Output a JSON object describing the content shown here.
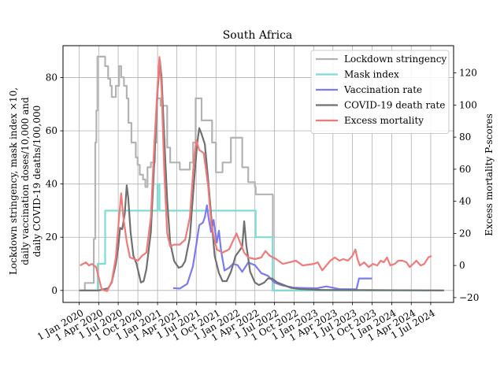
{
  "chart_data": {
    "type": "line",
    "title": "South Africa",
    "ylabel_left": [
      "Lockdown stringency, mask index ×10,",
      "daily vaccination doses/10,000 and",
      "daily COVID-19 deaths/100,000"
    ],
    "ylabel_right": "Excess mortality P-scores",
    "ylim_left": [
      -4.5,
      92
    ],
    "ylim_right": [
      -23,
      137
    ],
    "xlim": [
      "2019-10-17",
      "2024-10-16"
    ],
    "grid": true,
    "legend_position": "upper right",
    "yticks_left": [
      0,
      20,
      40,
      60,
      80
    ],
    "yticks_right": [
      -20,
      0,
      20,
      40,
      60,
      80,
      100,
      120
    ],
    "xticks": [
      {
        "date": "2020-01-01",
        "label": "1 Jan 2020"
      },
      {
        "date": "2020-04-01",
        "label": "1 Apr 2020"
      },
      {
        "date": "2020-07-01",
        "label": "1 Jul 2020"
      },
      {
        "date": "2020-10-01",
        "label": "1 Oct 2020"
      },
      {
        "date": "2021-01-01",
        "label": "1 Jan 2021"
      },
      {
        "date": "2021-04-01",
        "label": "1 Apr 2021"
      },
      {
        "date": "2021-07-01",
        "label": "1 Jul 2021"
      },
      {
        "date": "2021-10-01",
        "label": "1 Oct 2021"
      },
      {
        "date": "2022-01-01",
        "label": "1 Jan 2022"
      },
      {
        "date": "2022-04-01",
        "label": "1 Apr 2022"
      },
      {
        "date": "2022-07-01",
        "label": "1 Jul 2022"
      },
      {
        "date": "2022-10-01",
        "label": "1 Oct 2022"
      },
      {
        "date": "2023-01-01",
        "label": "1 Jan 2023"
      },
      {
        "date": "2023-04-01",
        "label": "1 Apr 2023"
      },
      {
        "date": "2023-07-01",
        "label": "1 Jul 2023"
      },
      {
        "date": "2023-10-01",
        "label": "1 Oct 2023"
      },
      {
        "date": "2024-01-01",
        "label": "1 Jan 2024"
      },
      {
        "date": "2024-04-01",
        "label": "1 Apr 2024"
      },
      {
        "date": "2024-07-01",
        "label": "1 Jul 2024"
      }
    ],
    "series": [
      {
        "name": "Lockdown stringency",
        "color": "#b3b3b3",
        "axis": "left",
        "step": true,
        "points": [
          [
            "2020-01-01",
            0
          ],
          [
            "2020-01-27",
            2.8
          ],
          [
            "2020-03-09",
            19.4
          ],
          [
            "2020-03-16",
            55.6
          ],
          [
            "2020-03-21",
            67.6
          ],
          [
            "2020-03-26",
            87.9
          ],
          [
            "2020-05-01",
            84.3
          ],
          [
            "2020-05-15",
            79.6
          ],
          [
            "2020-05-25",
            76.9
          ],
          [
            "2020-06-01",
            72.7
          ],
          [
            "2020-06-20",
            76.9
          ],
          [
            "2020-07-05",
            84.3
          ],
          [
            "2020-07-15",
            80.1
          ],
          [
            "2020-07-28",
            76.9
          ],
          [
            "2020-08-10",
            72.2
          ],
          [
            "2020-08-18",
            63.0
          ],
          [
            "2020-09-01",
            55.6
          ],
          [
            "2020-09-21",
            50.0
          ],
          [
            "2020-09-30",
            47.2
          ],
          [
            "2020-10-10",
            43.5
          ],
          [
            "2020-10-25",
            41.7
          ],
          [
            "2020-11-05",
            38.9
          ],
          [
            "2020-11-15",
            46.3
          ],
          [
            "2020-12-01",
            48.1
          ],
          [
            "2020-12-20",
            55.6
          ],
          [
            "2020-12-29",
            72.2
          ],
          [
            "2021-01-15",
            69.4
          ],
          [
            "2021-02-15",
            53.7
          ],
          [
            "2021-03-01",
            48.1
          ],
          [
            "2021-04-15",
            45.4
          ],
          [
            "2021-06-01",
            48.1
          ],
          [
            "2021-06-16",
            55.6
          ],
          [
            "2021-06-28",
            72.2
          ],
          [
            "2021-07-26",
            63.9
          ],
          [
            "2021-09-13",
            55.6
          ],
          [
            "2021-10-01",
            44.4
          ],
          [
            "2021-11-01",
            48.1
          ],
          [
            "2021-12-10",
            57.4
          ],
          [
            "2022-01-15",
            57.4
          ],
          [
            "2022-02-01",
            46.3
          ],
          [
            "2022-03-01",
            40.7
          ],
          [
            "2022-04-01",
            38.9
          ],
          [
            "2022-04-05",
            36.1
          ],
          [
            "2022-06-23",
            35.9
          ],
          [
            "2022-06-24",
            0
          ],
          [
            "2024-09-01",
            0
          ]
        ]
      },
      {
        "name": "Mask index",
        "color": "#7fdcd4",
        "axis": "left",
        "step": true,
        "points": [
          [
            "2020-01-01",
            0
          ],
          [
            "2020-03-27",
            10
          ],
          [
            "2020-05-01",
            30
          ],
          [
            "2021-01-01",
            40
          ],
          [
            "2021-01-10",
            30
          ],
          [
            "2022-04-05",
            20
          ],
          [
            "2022-06-23",
            0
          ],
          [
            "2024-09-01",
            0
          ]
        ]
      },
      {
        "name": "Vaccination rate",
        "color": "#7b7bf0",
        "axis": "left",
        "step": false,
        "points": [
          [
            "2021-03-15",
            0.9
          ],
          [
            "2021-04-15",
            0.7
          ],
          [
            "2021-05-20",
            2.5
          ],
          [
            "2021-06-15",
            9.0
          ],
          [
            "2021-07-01",
            17.0
          ],
          [
            "2021-07-15",
            24.5
          ],
          [
            "2021-08-01",
            25.5
          ],
          [
            "2021-08-10",
            27.5
          ],
          [
            "2021-08-20",
            32.0
          ],
          [
            "2021-08-28",
            27.0
          ],
          [
            "2021-09-08",
            22.0
          ],
          [
            "2021-09-20",
            26.5
          ],
          [
            "2021-10-05",
            18.0
          ],
          [
            "2021-10-15",
            22.5
          ],
          [
            "2021-10-25",
            15.0
          ],
          [
            "2021-11-10",
            7.5
          ],
          [
            "2021-12-01",
            8.5
          ],
          [
            "2021-12-20",
            10.0
          ],
          [
            "2022-01-10",
            9.5
          ],
          [
            "2022-02-01",
            7.0
          ],
          [
            "2022-03-01",
            10.5
          ],
          [
            "2022-04-01",
            9.5
          ],
          [
            "2022-05-01",
            6.5
          ],
          [
            "2022-06-01",
            5.5
          ],
          [
            "2022-07-01",
            3.0
          ],
          [
            "2022-08-01",
            2.0
          ],
          [
            "2022-10-01",
            1.0
          ],
          [
            "2023-01-15",
            0.8
          ],
          [
            "2023-03-01",
            1.5
          ],
          [
            "2023-05-01",
            0.5
          ],
          [
            "2023-07-20",
            0.4
          ],
          [
            "2023-08-01",
            4.5
          ],
          [
            "2023-10-01",
            4.5
          ]
        ]
      },
      {
        "name": "COVID-19 death rate",
        "color": "#707070",
        "axis": "left",
        "step": false,
        "points": [
          [
            "2020-01-01",
            0
          ],
          [
            "2020-04-01",
            0
          ],
          [
            "2020-05-15",
            0.8
          ],
          [
            "2020-06-01",
            3.0
          ],
          [
            "2020-06-20",
            10.0
          ],
          [
            "2020-07-01",
            16.0
          ],
          [
            "2020-07-10",
            23.5
          ],
          [
            "2020-07-20",
            23.0
          ],
          [
            "2020-08-01",
            29.0
          ],
          [
            "2020-08-10",
            39.5
          ],
          [
            "2020-08-17",
            35.0
          ],
          [
            "2020-08-28",
            22.0
          ],
          [
            "2020-09-10",
            13.0
          ],
          [
            "2020-09-25",
            10.0
          ],
          [
            "2020-10-15",
            3.0
          ],
          [
            "2020-10-28",
            3.5
          ],
          [
            "2020-11-10",
            8.0
          ],
          [
            "2020-12-01",
            22.0
          ],
          [
            "2020-12-15",
            45.0
          ],
          [
            "2021-01-01",
            75.0
          ],
          [
            "2021-01-12",
            86.5
          ],
          [
            "2021-01-20",
            80.0
          ],
          [
            "2021-02-01",
            58.0
          ],
          [
            "2021-02-15",
            34.0
          ],
          [
            "2021-03-01",
            18.0
          ],
          [
            "2021-03-20",
            11.0
          ],
          [
            "2021-04-10",
            8.5
          ],
          [
            "2021-04-25",
            9.0
          ],
          [
            "2021-05-10",
            11.0
          ],
          [
            "2021-06-01",
            20.0
          ],
          [
            "2021-06-20",
            40.0
          ],
          [
            "2021-07-05",
            55.0
          ],
          [
            "2021-07-15",
            61.0
          ],
          [
            "2021-07-25",
            59.0
          ],
          [
            "2021-08-10",
            55.0
          ],
          [
            "2021-08-25",
            42.0
          ],
          [
            "2021-09-10",
            27.0
          ],
          [
            "2021-09-25",
            13.0
          ],
          [
            "2021-10-15",
            6.5
          ],
          [
            "2021-11-01",
            3.5
          ],
          [
            "2021-11-20",
            3.5
          ],
          [
            "2021-12-10",
            7.0
          ],
          [
            "2022-01-01",
            13.0
          ],
          [
            "2022-01-15",
            14.5
          ],
          [
            "2022-02-01",
            16.5
          ],
          [
            "2022-02-10",
            26.0
          ],
          [
            "2022-02-20",
            17.0
          ],
          [
            "2022-03-10",
            7.0
          ],
          [
            "2022-04-01",
            3.0
          ],
          [
            "2022-04-20",
            2.0
          ],
          [
            "2022-05-15",
            3.0
          ],
          [
            "2022-06-01",
            4.5
          ],
          [
            "2022-06-20",
            4.5
          ],
          [
            "2022-07-15",
            3.0
          ],
          [
            "2022-08-15",
            2.0
          ],
          [
            "2022-09-15",
            1.0
          ],
          [
            "2022-11-01",
            0.5
          ],
          [
            "2023-02-01",
            0.2
          ],
          [
            "2024-09-01",
            0
          ]
        ]
      },
      {
        "name": "Excess mortality",
        "color": "#f07a7a",
        "axis": "right",
        "step": false,
        "points": [
          [
            "2020-01-05",
            0
          ],
          [
            "2020-02-01",
            2
          ],
          [
            "2020-02-15",
            0
          ],
          [
            "2020-03-01",
            1
          ],
          [
            "2020-03-20",
            -1
          ],
          [
            "2020-04-15",
            -15
          ],
          [
            "2020-05-10",
            -16
          ],
          [
            "2020-06-01",
            -10
          ],
          [
            "2020-06-20",
            5
          ],
          [
            "2020-07-05",
            30
          ],
          [
            "2020-07-15",
            45
          ],
          [
            "2020-07-25",
            30
          ],
          [
            "2020-08-10",
            15
          ],
          [
            "2020-08-25",
            5
          ],
          [
            "2020-09-15",
            4
          ],
          [
            "2020-10-01",
            3
          ],
          [
            "2020-10-20",
            6
          ],
          [
            "2020-11-10",
            8
          ],
          [
            "2020-12-01",
            30
          ],
          [
            "2020-12-15",
            70
          ],
          [
            "2021-01-01",
            112
          ],
          [
            "2021-01-10",
            130
          ],
          [
            "2021-01-20",
            110
          ],
          [
            "2021-02-01",
            60
          ],
          [
            "2021-02-15",
            20
          ],
          [
            "2021-03-01",
            12
          ],
          [
            "2021-03-20",
            13
          ],
          [
            "2021-04-15",
            13
          ],
          [
            "2021-05-10",
            16
          ],
          [
            "2021-06-01",
            30
          ],
          [
            "2021-06-20",
            65
          ],
          [
            "2021-07-01",
            78
          ],
          [
            "2021-07-15",
            72
          ],
          [
            "2021-08-05",
            70
          ],
          [
            "2021-08-25",
            50
          ],
          [
            "2021-09-10",
            25
          ],
          [
            "2021-10-05",
            10
          ],
          [
            "2021-11-01",
            8
          ],
          [
            "2021-12-01",
            10
          ],
          [
            "2022-01-05",
            20
          ],
          [
            "2022-01-20",
            15
          ],
          [
            "2022-02-10",
            8
          ],
          [
            "2022-03-01",
            5
          ],
          [
            "2022-04-01",
            4
          ],
          [
            "2022-05-01",
            5
          ],
          [
            "2022-05-20",
            9
          ],
          [
            "2022-06-10",
            6
          ],
          [
            "2022-07-10",
            4
          ],
          [
            "2022-08-10",
            1
          ],
          [
            "2022-09-10",
            2
          ],
          [
            "2022-10-10",
            3
          ],
          [
            "2022-11-10",
            0
          ],
          [
            "2023-01-01",
            1
          ],
          [
            "2023-01-20",
            2
          ],
          [
            "2023-02-10",
            -3
          ],
          [
            "2023-03-01",
            0
          ],
          [
            "2023-03-20",
            3
          ],
          [
            "2023-04-10",
            5
          ],
          [
            "2023-05-01",
            3
          ],
          [
            "2023-05-20",
            4
          ],
          [
            "2023-06-10",
            3
          ],
          [
            "2023-07-01",
            6
          ],
          [
            "2023-07-15",
            10
          ],
          [
            "2023-07-25",
            4
          ],
          [
            "2023-08-05",
            0
          ],
          [
            "2023-08-25",
            2
          ],
          [
            "2023-09-15",
            -1
          ],
          [
            "2023-10-05",
            1
          ],
          [
            "2023-10-25",
            0
          ],
          [
            "2023-11-10",
            3
          ],
          [
            "2023-11-25",
            2
          ],
          [
            "2023-12-10",
            5
          ],
          [
            "2023-12-25",
            0
          ],
          [
            "2024-01-15",
            1
          ],
          [
            "2024-02-01",
            3
          ],
          [
            "2024-02-20",
            3
          ],
          [
            "2024-03-10",
            2
          ],
          [
            "2024-03-25",
            -1
          ],
          [
            "2024-04-10",
            1
          ],
          [
            "2024-04-25",
            3
          ],
          [
            "2024-05-15",
            0
          ],
          [
            "2024-06-01",
            1
          ],
          [
            "2024-06-20",
            5
          ],
          [
            "2024-07-05",
            6
          ]
        ]
      }
    ]
  }
}
